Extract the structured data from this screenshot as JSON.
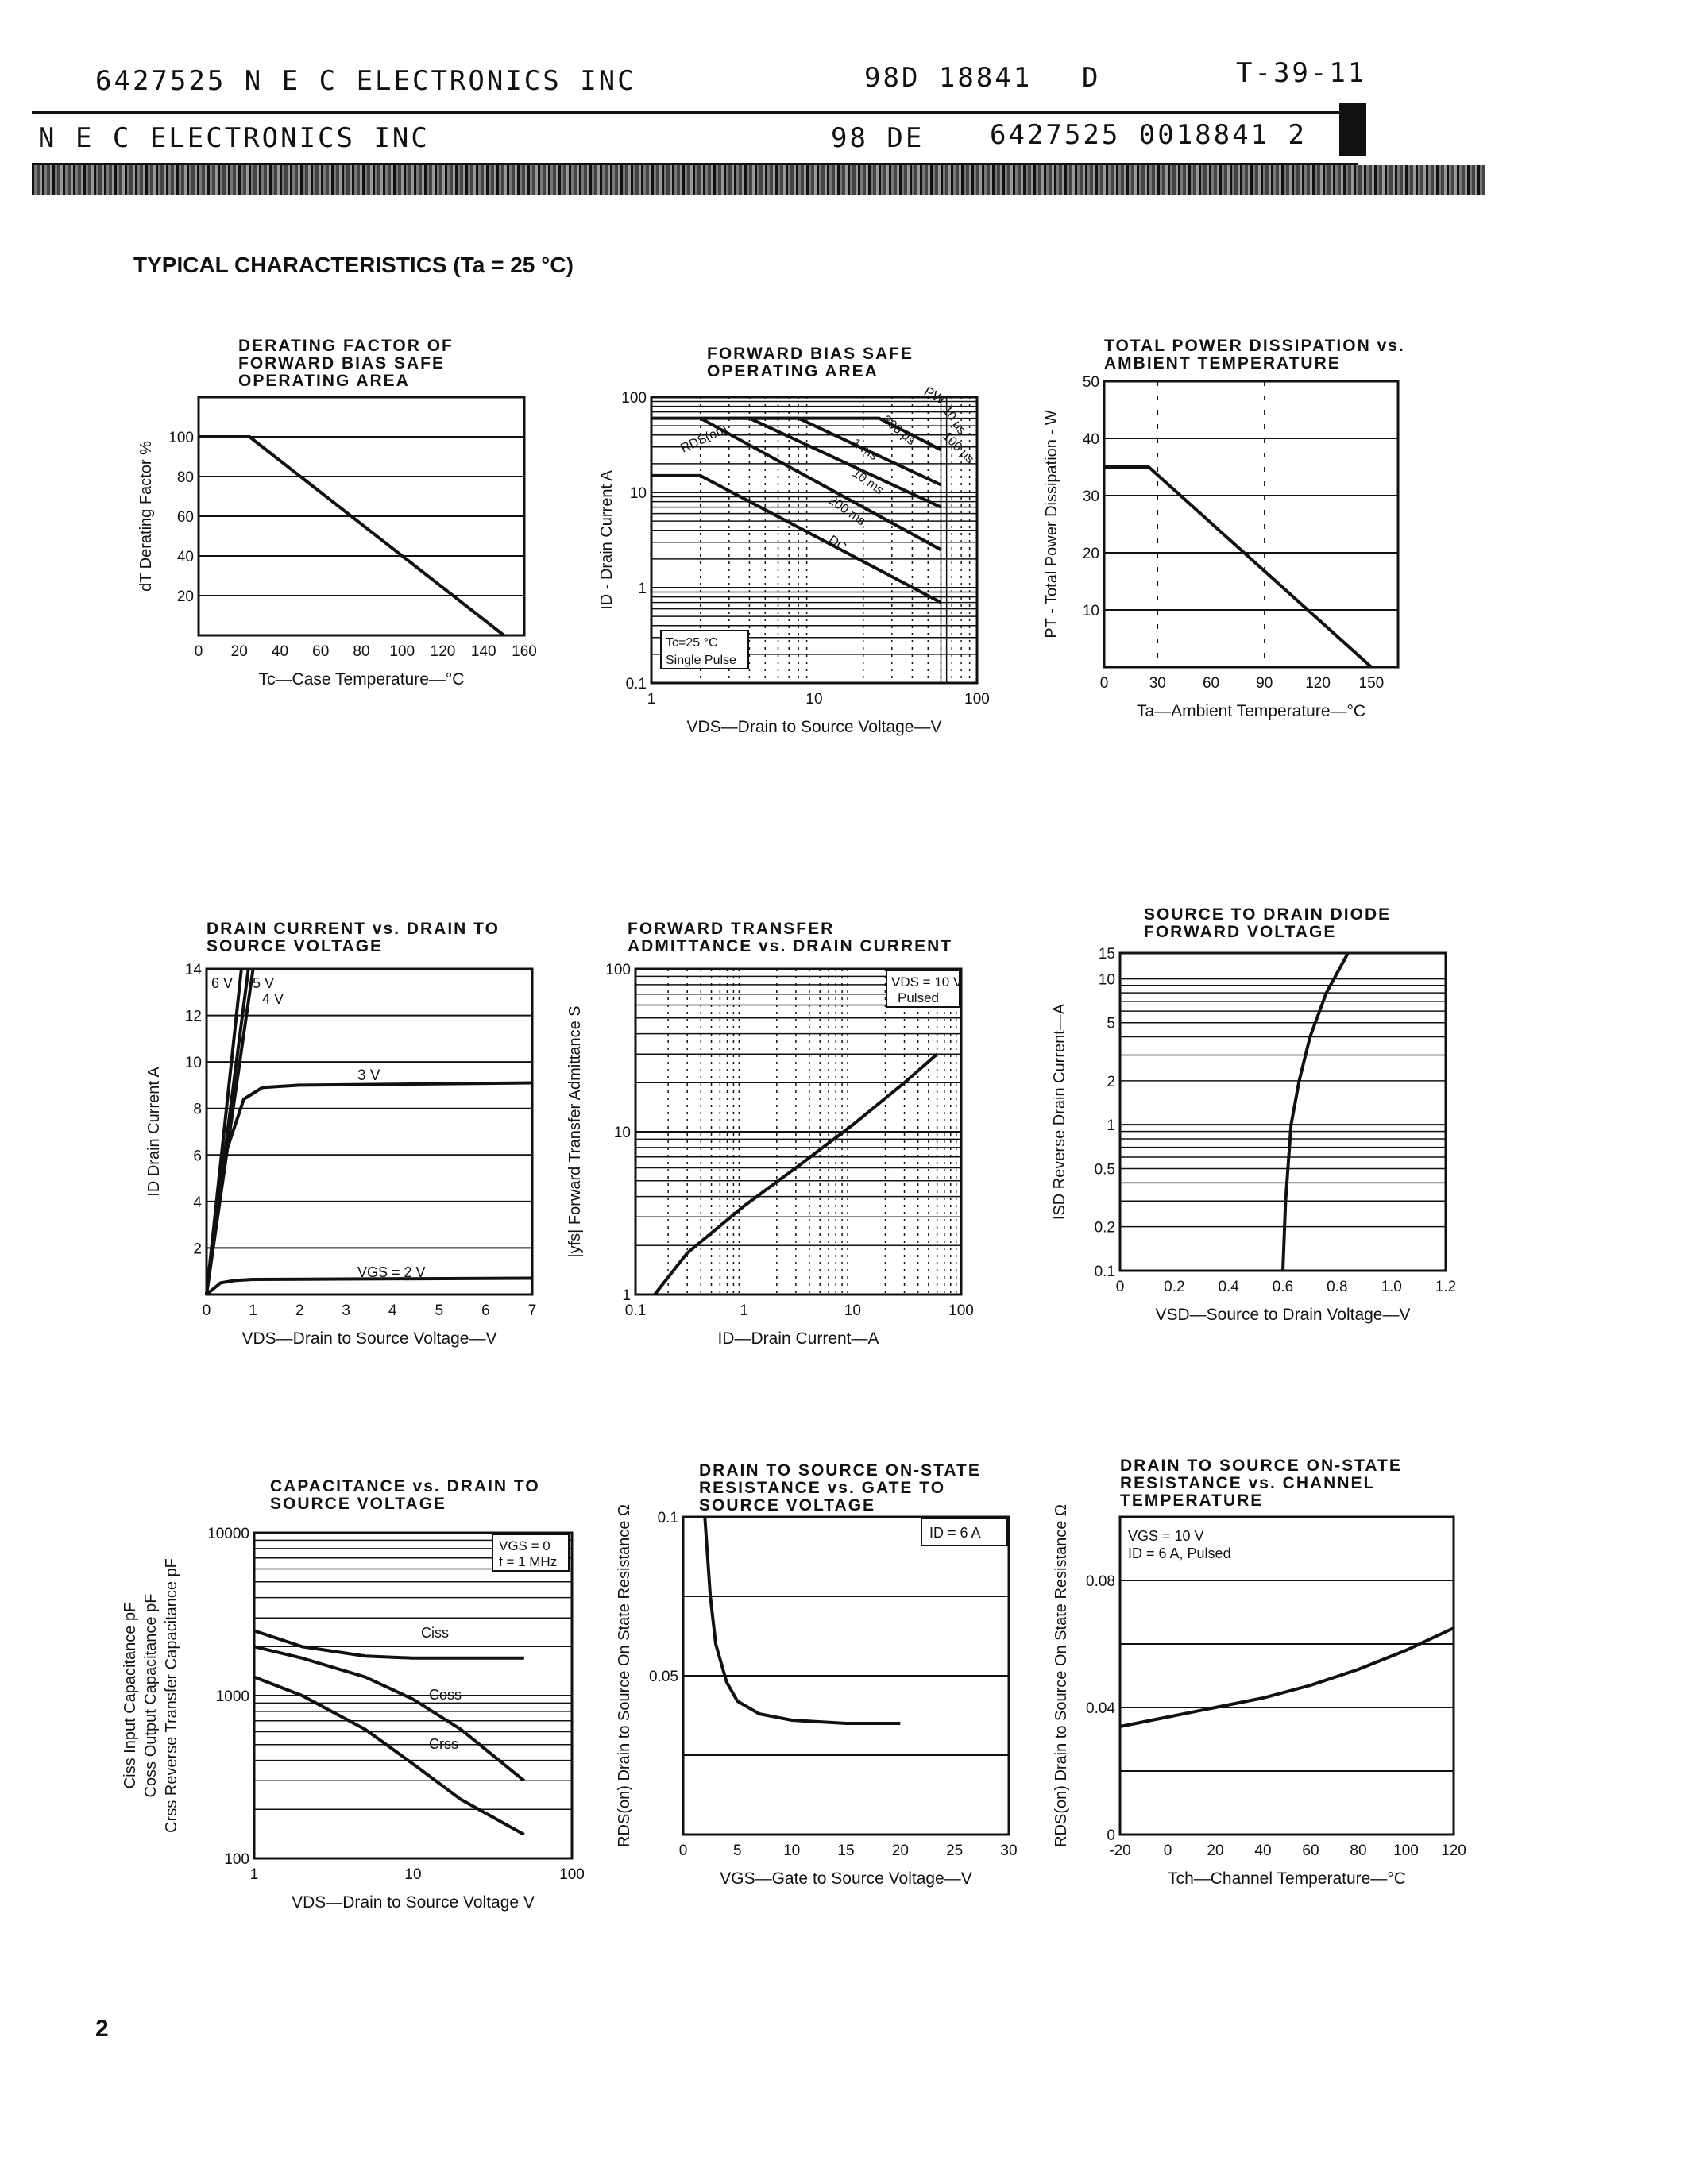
{
  "header": {
    "line1_left": "6427525 N E C ELECTRONICS INC",
    "line1_code": "98D 18841",
    "line1_d": "D",
    "line1_right": "T-39-11",
    "line2_left": "N E C ELECTRONICS INC",
    "line2_mid": "98 DE",
    "line2_right": "6427525 0018841 2"
  },
  "section_title": "TYPICAL CHARACTERISTICS (Ta = 25 °C)",
  "page_number": "2",
  "chart_data": [
    {
      "id": "derating",
      "type": "line",
      "title": "DERATING FACTOR OF FORWARD BIAS SAFE OPERATING AREA",
      "xlabel": "Tc—Case Temperature—°C",
      "ylabel": "dT Derating Factor %",
      "xlim": [
        0,
        160
      ],
      "ylim": [
        0,
        120
      ],
      "x_ticks": [
        "0",
        "20",
        "40",
        "60",
        "80",
        "100",
        "120",
        "140",
        "160"
      ],
      "y_ticks": [
        "20",
        "40",
        "60",
        "80",
        "100"
      ],
      "series": [
        {
          "x": [
            0,
            25,
            150
          ],
          "y": [
            100,
            100,
            0
          ]
        }
      ]
    },
    {
      "id": "fbsoa",
      "type": "line",
      "title": "FORWARD BIAS SAFE OPERATING AREA",
      "xlabel": "VDS—Drain to Source Voltage—V",
      "ylabel": "ID - Drain Current A",
      "xscale": "log",
      "yscale": "log",
      "xlim": [
        1,
        100
      ],
      "ylim": [
        0.1,
        100
      ],
      "x_ticks": [
        "1",
        "10",
        "100"
      ],
      "y_ticks": [
        "0.1",
        "1",
        "10",
        "100"
      ],
      "annotations": [
        "PW",
        "10 µs",
        "100 µs",
        "300 µs",
        "1 ms",
        "10 ms",
        "200 ms",
        "DC",
        "RDS(on)",
        "Tc=25 °C",
        "Single Pulse"
      ],
      "series": [
        {
          "x": [
            1,
            4.5,
            25,
            60
          ],
          "y": [
            60,
            60,
            60,
            28
          ]
        },
        {
          "x": [
            3,
            8,
            60
          ],
          "y": [
            60,
            60,
            12
          ]
        },
        {
          "x": [
            4,
            60
          ],
          "y": [
            60,
            7
          ]
        },
        {
          "x": [
            2,
            60
          ],
          "y": [
            60,
            2.5
          ]
        },
        {
          "x": [
            1,
            2,
            60
          ],
          "y": [
            15,
            15,
            0.7
          ]
        }
      ]
    },
    {
      "id": "power",
      "type": "line",
      "title": "TOTAL POWER DISSIPATION vs. AMBIENT TEMPERATURE",
      "xlabel": "Ta—Ambient Temperature—°C",
      "ylabel": "PT - Total Power Dissipation - W",
      "xlim": [
        0,
        165
      ],
      "ylim": [
        0,
        50
      ],
      "x_ticks": [
        "0",
        "30",
        "60",
        "90",
        "120",
        "150"
      ],
      "y_ticks": [
        "10",
        "20",
        "30",
        "40",
        "50"
      ],
      "series": [
        {
          "x": [
            0,
            25,
            150
          ],
          "y": [
            35,
            35,
            0
          ]
        }
      ]
    },
    {
      "id": "id_vds",
      "type": "line",
      "title": "DRAIN CURRENT vs. DRAIN TO SOURCE VOLTAGE",
      "xlabel": "VDS—Drain to Source Voltage—V",
      "ylabel": "ID Drain Current A",
      "xlim": [
        0,
        7
      ],
      "ylim": [
        0,
        14
      ],
      "x_ticks": [
        "0",
        "1",
        "2",
        "3",
        "4",
        "5",
        "6",
        "7"
      ],
      "y_ticks": [
        "2",
        "4",
        "6",
        "8",
        "10",
        "12",
        "14"
      ],
      "labels": [
        "6 V",
        "5 V",
        "4 V",
        "3 V",
        "VGS = 2 V"
      ],
      "series": [
        {
          "x": [
            0,
            1.0
          ],
          "y": [
            0,
            14
          ]
        },
        {
          "x": [
            0,
            0.9
          ],
          "y": [
            0,
            14
          ]
        },
        {
          "x": [
            0,
            0.75
          ],
          "y": [
            0,
            14
          ]
        },
        {
          "x": [
            0,
            0.4,
            0.8,
            1.2,
            2,
            7
          ],
          "y": [
            0,
            6,
            8.4,
            8.9,
            9,
            9.1
          ]
        },
        {
          "x": [
            0,
            0.3,
            0.6,
            1,
            7
          ],
          "y": [
            0,
            0.5,
            0.6,
            0.65,
            0.7
          ]
        }
      ]
    },
    {
      "id": "yfs",
      "type": "line",
      "title": "FORWARD TRANSFER ADMITTANCE vs. DRAIN CURRENT",
      "xlabel": "ID—Drain Current—A",
      "ylabel": "|yfs| Forward Transfer Admittance S",
      "xscale": "log",
      "yscale": "log",
      "xlim": [
        0.1,
        100
      ],
      "ylim": [
        1,
        100
      ],
      "x_ticks": [
        "0.1",
        "1",
        "10",
        "100"
      ],
      "y_ticks": [
        "1",
        "10",
        "100"
      ],
      "legend": [
        "VDS = 10 V",
        "Pulsed"
      ],
      "series": [
        {
          "x": [
            0.15,
            0.3,
            1,
            3,
            10,
            30,
            60
          ],
          "y": [
            1,
            1.8,
            3.5,
            6,
            11,
            20,
            30
          ]
        }
      ]
    },
    {
      "id": "diode",
      "type": "line",
      "title": "SOURCE TO DRAIN DIODE FORWARD VOLTAGE",
      "xlabel": "VSD—Source to Drain Voltage—V",
      "ylabel": "ISD Reverse Drain Current—A",
      "yscale": "log",
      "xlim": [
        0,
        1.2
      ],
      "ylim": [
        0.1,
        15
      ],
      "x_ticks": [
        "0",
        "0.2",
        "0.4",
        "0.6",
        "0.8",
        "1.0",
        "1.2"
      ],
      "y_ticks": [
        "0.1",
        "0.2",
        "0.5",
        "1",
        "2",
        "5",
        "10",
        "15"
      ],
      "series": [
        {
          "x": [
            0.6,
            0.61,
            0.63,
            0.66,
            0.7,
            0.76,
            0.84
          ],
          "y": [
            0.1,
            0.3,
            1,
            2,
            4,
            8,
            15
          ]
        }
      ]
    },
    {
      "id": "cap",
      "type": "line",
      "title": "CAPACITANCE vs. DRAIN TO SOURCE VOLTAGE",
      "xlabel": "VDS—Drain to Source Voltage V",
      "ylabel": "Ciss Input Capacitance pF / Coss Output Capacitance pF / Crss Reverse Transfer Capacitance pF",
      "xscale": "log",
      "yscale": "log",
      "xlim": [
        1,
        100
      ],
      "ylim": [
        100,
        10000
      ],
      "x_ticks": [
        "1",
        "10",
        "100"
      ],
      "y_ticks": [
        "100",
        "1000",
        "10000"
      ],
      "legend": [
        "VGS = 0",
        "f = 1 MHz"
      ],
      "series": [
        {
          "name": "Ciss",
          "x": [
            1,
            2,
            5,
            10,
            20,
            50
          ],
          "y": [
            2500,
            2000,
            1750,
            1700,
            1700,
            1700
          ]
        },
        {
          "name": "Coss",
          "x": [
            1,
            2,
            5,
            10,
            20,
            50
          ],
          "y": [
            2000,
            1700,
            1300,
            950,
            620,
            300
          ]
        },
        {
          "name": "Crss",
          "x": [
            1,
            2,
            5,
            10,
            20,
            50
          ],
          "y": [
            1300,
            1000,
            620,
            380,
            230,
            140
          ]
        }
      ]
    },
    {
      "id": "rds_vgs",
      "type": "line",
      "title": "DRAIN TO SOURCE ON-STATE RESISTANCE vs. GATE TO SOURCE VOLTAGE",
      "xlabel": "VGS—Gate to Source Voltage—V",
      "ylabel": "RDS(on) Drain to Source On State Resistance Ω",
      "xlim": [
        0,
        30
      ],
      "ylim": [
        0,
        0.1
      ],
      "x_ticks": [
        "0",
        "5",
        "10",
        "15",
        "20",
        "25",
        "30"
      ],
      "y_ticks": [
        "0.05",
        "0.1"
      ],
      "legend": [
        "ID = 6 A"
      ],
      "series": [
        {
          "x": [
            2,
            2.5,
            3,
            4,
            5,
            7,
            10,
            15,
            20
          ],
          "y": [
            0.1,
            0.075,
            0.06,
            0.048,
            0.042,
            0.038,
            0.036,
            0.035,
            0.035
          ]
        }
      ]
    },
    {
      "id": "rds_tch",
      "type": "line",
      "title": "DRAIN TO SOURCE ON-STATE RESISTANCE vs. CHANNEL TEMPERATURE",
      "xlabel": "Tch—Channel Temperature—°C",
      "ylabel": "RDS(on) Drain to Source On State Resistance Ω",
      "xlim": [
        -20,
        120
      ],
      "ylim": [
        0,
        0.1
      ],
      "x_ticks": [
        "-20",
        "0",
        "20",
        "40",
        "60",
        "80",
        "100",
        "120"
      ],
      "y_ticks": [
        "0",
        "0.04",
        "0.08"
      ],
      "legend": [
        "VGS = 10 V",
        "ID = 6 A, Pulsed"
      ],
      "series": [
        {
          "x": [
            -20,
            0,
            20,
            40,
            60,
            80,
            100,
            120
          ],
          "y": [
            0.034,
            0.037,
            0.04,
            0.043,
            0.047,
            0.052,
            0.058,
            0.065
          ]
        }
      ]
    }
  ]
}
